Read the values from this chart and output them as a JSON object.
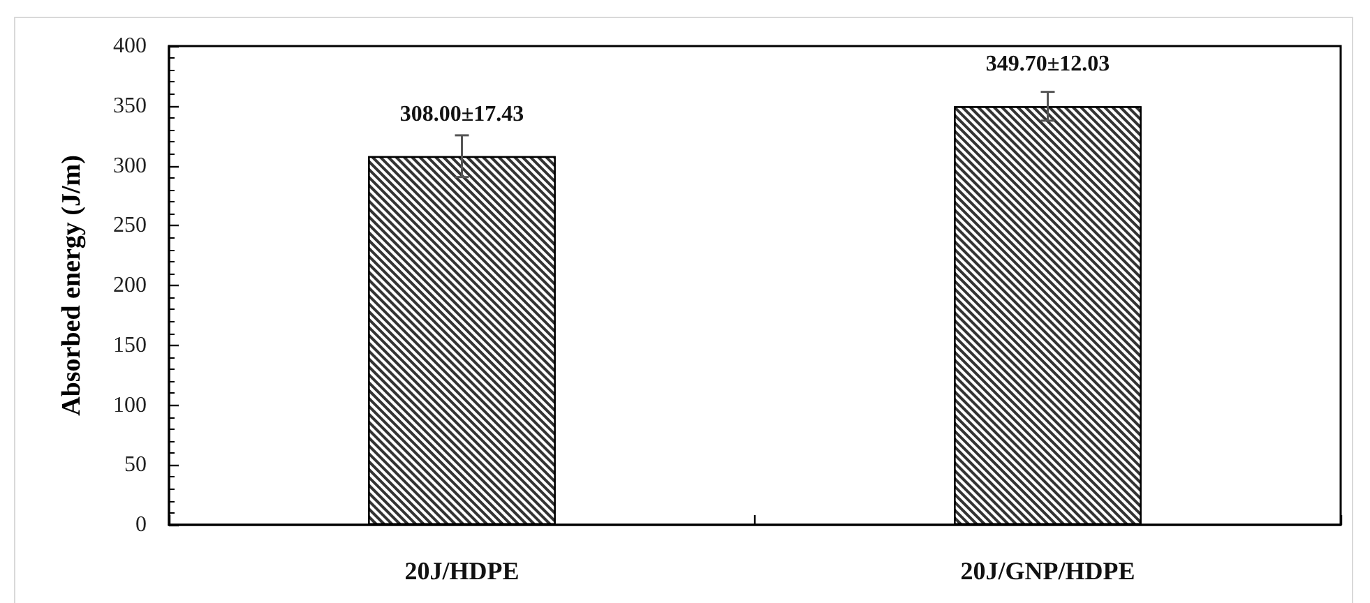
{
  "chart_data": {
    "type": "bar",
    "ylabel": "Absorbed energy (J/m)",
    "categories": [
      "20J/HDPE",
      "20J/GNP/HDPE"
    ],
    "values": [
      308.0,
      349.7
    ],
    "errors": [
      17.43,
      12.03
    ],
    "value_labels": [
      "308.00±17.43",
      "349.70±12.03"
    ],
    "color": "#333333",
    "ylim": [
      0,
      400
    ],
    "yticks": [
      0,
      50,
      100,
      150,
      200,
      250,
      300,
      350,
      400
    ],
    "grid": false
  }
}
